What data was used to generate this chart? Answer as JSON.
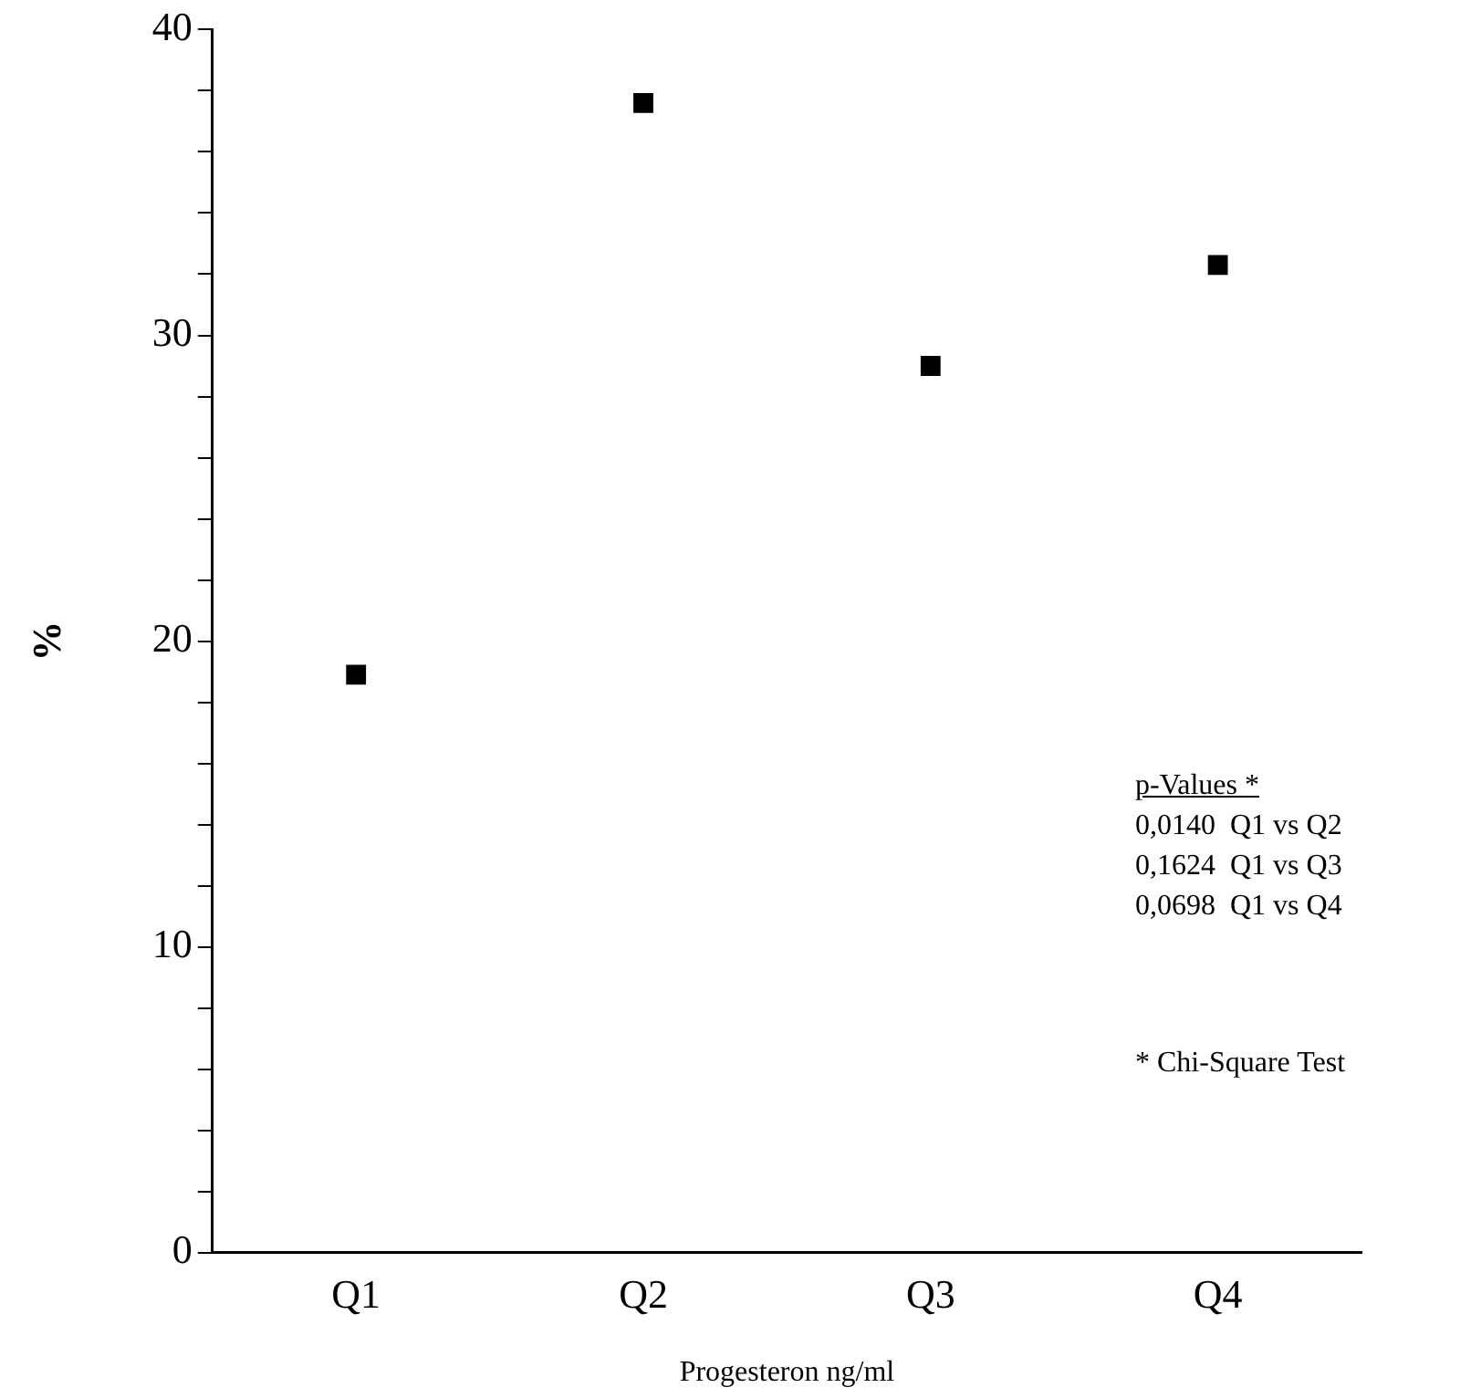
{
  "chart_data": {
    "type": "scatter",
    "xlabel": "Progesteron ng/ml",
    "ylabel": "%",
    "categories": [
      "Q1",
      "Q2",
      "Q3",
      "Q4"
    ],
    "series": [
      {
        "color": "#000000",
        "values": [
          18.9,
          37.6,
          29.0,
          32.3
        ]
      }
    ],
    "ylim": [
      0,
      40
    ],
    "yticks": [
      0,
      {
        "value": 2,
        "label": null
      },
      {
        "value": 4,
        "label": null
      },
      {
        "value": 6,
        "label": null
      },
      {
        "value": 8,
        "label": null
      },
      10,
      {
        "value": 12,
        "label": null
      },
      {
        "value": 14,
        "label": null
      },
      {
        "value": 16,
        "label": null
      },
      {
        "value": 18,
        "label": null
      },
      20,
      {
        "value": 22,
        "label": null
      },
      {
        "value": 24,
        "label": null
      },
      {
        "value": 26,
        "label": null
      },
      {
        "value": 28,
        "label": null
      },
      30,
      {
        "value": 32,
        "label": null
      },
      {
        "value": 34,
        "label": null
      },
      {
        "value": 36,
        "label": null
      },
      {
        "value": 38,
        "label": null
      },
      40
    ],
    "annotations": [
      "p-Values *",
      "0,0140  Q1 vs Q2",
      "0,1624  Q1 vs Q3",
      "0,0698  Q1 vs Q4",
      "* Chi-Square Test"
    ],
    "marker": "square",
    "grid": false,
    "legend": false
  }
}
